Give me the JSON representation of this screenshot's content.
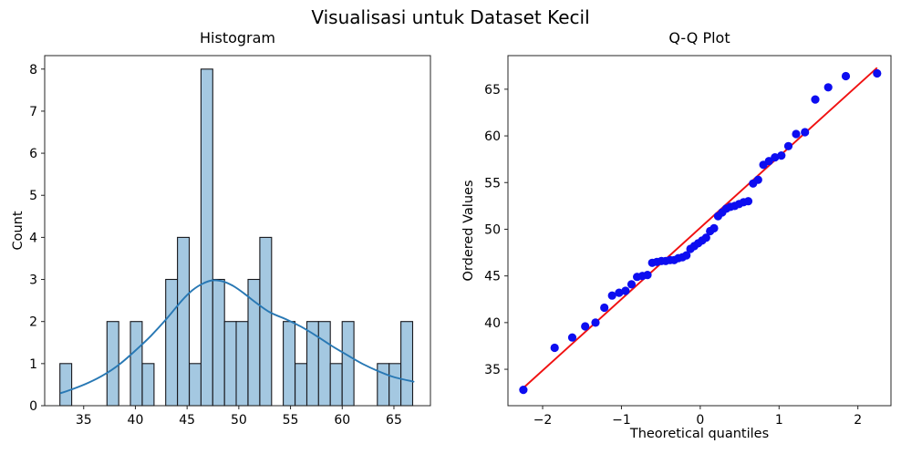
{
  "figure": {
    "title": "Visualisasi untuk Dataset Kecil",
    "background": "#ffffff",
    "spine_color": "#242424"
  },
  "chart_data": [
    {
      "id": "histogram",
      "type": "bar",
      "title": "Histogram",
      "xlabel": "",
      "ylabel": "Count",
      "xlim": [
        31.23,
        68.53
      ],
      "ylim": [
        0,
        8.32
      ],
      "grid": false,
      "bar_color": "#a4c8e1",
      "bar_edge_color": "#17171c",
      "bin_width": 1.137,
      "bins": [
        {
          "center": 33.27,
          "count": 1
        },
        {
          "center": 37.82,
          "count": 2
        },
        {
          "center": 40.09,
          "count": 2
        },
        {
          "center": 41.23,
          "count": 1
        },
        {
          "center": 43.5,
          "count": 3
        },
        {
          "center": 44.64,
          "count": 4
        },
        {
          "center": 45.78,
          "count": 1
        },
        {
          "center": 46.91,
          "count": 8
        },
        {
          "center": 48.05,
          "count": 3
        },
        {
          "center": 49.19,
          "count": 2
        },
        {
          "center": 50.32,
          "count": 2
        },
        {
          "center": 51.46,
          "count": 3
        },
        {
          "center": 52.6,
          "count": 4
        },
        {
          "center": 54.87,
          "count": 2
        },
        {
          "center": 56.01,
          "count": 1
        },
        {
          "center": 57.15,
          "count": 2
        },
        {
          "center": 58.28,
          "count": 2
        },
        {
          "center": 59.42,
          "count": 1
        },
        {
          "center": 60.56,
          "count": 2
        },
        {
          "center": 63.97,
          "count": 1
        },
        {
          "center": 65.1,
          "count": 1
        },
        {
          "center": 66.24,
          "count": 2
        }
      ],
      "kde": {
        "color": "#2878b4",
        "points": [
          [
            32.8,
            0.3
          ],
          [
            34.0,
            0.4
          ],
          [
            35.5,
            0.55
          ],
          [
            37.0,
            0.74
          ],
          [
            38.5,
            0.99
          ],
          [
            40.0,
            1.31
          ],
          [
            41.5,
            1.66
          ],
          [
            43.0,
            2.06
          ],
          [
            44.5,
            2.5
          ],
          [
            45.5,
            2.74
          ],
          [
            46.5,
            2.9
          ],
          [
            47.5,
            2.98
          ],
          [
            48.5,
            2.95
          ],
          [
            49.5,
            2.84
          ],
          [
            50.5,
            2.67
          ],
          [
            51.6,
            2.46
          ],
          [
            53.0,
            2.22
          ],
          [
            54.5,
            2.06
          ],
          [
            56.0,
            1.88
          ],
          [
            57.5,
            1.66
          ],
          [
            59.0,
            1.42
          ],
          [
            60.5,
            1.2
          ],
          [
            62.0,
            0.99
          ],
          [
            63.5,
            0.82
          ],
          [
            65.0,
            0.68
          ],
          [
            66.9,
            0.57
          ]
        ]
      },
      "xticks": [
        {
          "v": 35,
          "label": "35"
        },
        {
          "v": 40,
          "label": "40"
        },
        {
          "v": 45,
          "label": "45"
        },
        {
          "v": 50,
          "label": "50"
        },
        {
          "v": 55,
          "label": "55"
        },
        {
          "v": 60,
          "label": "60"
        },
        {
          "v": 65,
          "label": "65"
        }
      ],
      "yticks": [
        {
          "v": 0,
          "label": "0"
        },
        {
          "v": 1,
          "label": "1"
        },
        {
          "v": 2,
          "label": "2"
        },
        {
          "v": 3,
          "label": "3"
        },
        {
          "v": 4,
          "label": "4"
        },
        {
          "v": 5,
          "label": "5"
        },
        {
          "v": 6,
          "label": "6"
        },
        {
          "v": 7,
          "label": "7"
        },
        {
          "v": 8,
          "label": "8"
        }
      ]
    },
    {
      "id": "qq-plot",
      "type": "scatter",
      "title": "Q-Q Plot",
      "xlabel": "Theoretical quantiles",
      "ylabel": "Ordered Values",
      "xlim": [
        -2.44,
        2.42
      ],
      "ylim": [
        31.1,
        68.6
      ],
      "grid": false,
      "marker_color": "#0d0df0",
      "points": [
        [
          -2.244,
          32.8
        ],
        [
          -1.847,
          37.3
        ],
        [
          -1.624,
          38.4
        ],
        [
          -1.46,
          39.6
        ],
        [
          -1.329,
          40.0
        ],
        [
          -1.217,
          41.6
        ],
        [
          -1.118,
          42.9
        ],
        [
          -1.029,
          43.2
        ],
        [
          -0.948,
          43.4
        ],
        [
          -0.872,
          44.1
        ],
        [
          -0.801,
          44.9
        ],
        [
          -0.734,
          45.0
        ],
        [
          -0.67,
          45.1
        ],
        [
          -0.609,
          46.4
        ],
        [
          -0.55,
          46.5
        ],
        [
          -0.493,
          46.6
        ],
        [
          -0.438,
          46.6
        ],
        [
          -0.383,
          46.7
        ],
        [
          -0.33,
          46.7
        ],
        [
          -0.278,
          46.9
        ],
        [
          -0.226,
          47.0
        ],
        [
          -0.175,
          47.2
        ],
        [
          -0.125,
          47.9
        ],
        [
          -0.075,
          48.2
        ],
        [
          -0.025,
          48.5
        ],
        [
          0.025,
          48.8
        ],
        [
          0.075,
          49.1
        ],
        [
          0.125,
          49.8
        ],
        [
          0.175,
          50.1
        ],
        [
          0.226,
          51.4
        ],
        [
          0.278,
          51.8
        ],
        [
          0.33,
          52.2
        ],
        [
          0.383,
          52.4
        ],
        [
          0.438,
          52.5
        ],
        [
          0.493,
          52.7
        ],
        [
          0.55,
          52.9
        ],
        [
          0.609,
          53.0
        ],
        [
          0.67,
          54.9
        ],
        [
          0.734,
          55.3
        ],
        [
          0.801,
          56.9
        ],
        [
          0.872,
          57.3
        ],
        [
          0.948,
          57.7
        ],
        [
          1.029,
          57.9
        ],
        [
          1.118,
          58.9
        ],
        [
          1.217,
          60.2
        ],
        [
          1.329,
          60.4
        ],
        [
          1.46,
          63.9
        ],
        [
          1.624,
          65.2
        ],
        [
          1.847,
          66.4
        ],
        [
          2.244,
          66.7
        ]
      ],
      "fit_line": {
        "color": "#f01111",
        "x1": -2.244,
        "y1": 33.0,
        "x2": 2.244,
        "y2": 67.3
      },
      "xticks": [
        {
          "v": -2,
          "label": "−2"
        },
        {
          "v": -1,
          "label": "−1"
        },
        {
          "v": 0,
          "label": "0"
        },
        {
          "v": 1,
          "label": "1"
        },
        {
          "v": 2,
          "label": "2"
        }
      ],
      "yticks": [
        {
          "v": 35,
          "label": "35"
        },
        {
          "v": 40,
          "label": "40"
        },
        {
          "v": 45,
          "label": "45"
        },
        {
          "v": 50,
          "label": "50"
        },
        {
          "v": 55,
          "label": "55"
        },
        {
          "v": 60,
          "label": "60"
        },
        {
          "v": 65,
          "label": "65"
        }
      ]
    }
  ]
}
